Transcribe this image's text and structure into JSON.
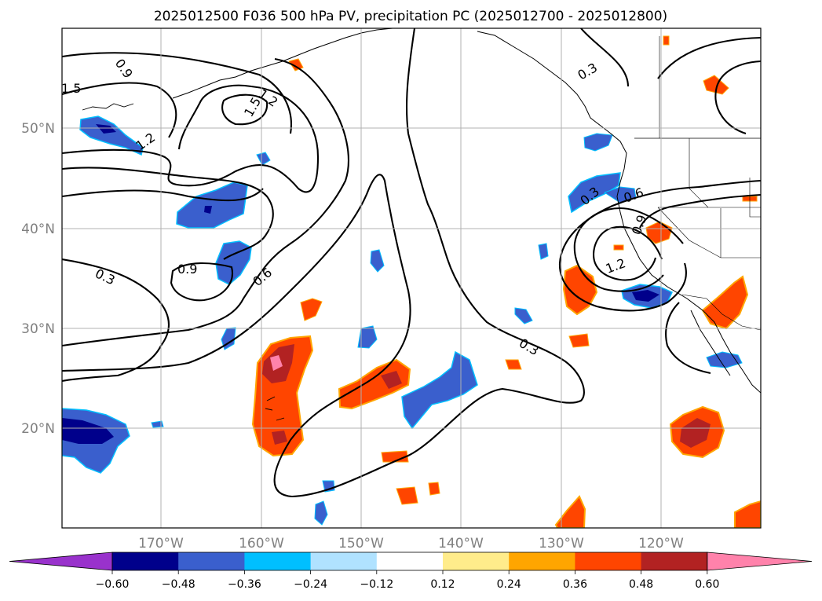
{
  "title": "2025012500 F036 500 hPa PV, precipitation PC (2025012700 - 2025012800)",
  "lon_ticks": [
    "170°W",
    "160°W",
    "150°W",
    "140°W",
    "130°W",
    "120°W"
  ],
  "lat_ticks": [
    "50°N",
    "40°N",
    "30°N",
    "20°N"
  ],
  "contour_labels": [
    "1.5",
    "0.9",
    "1.2",
    "1.5",
    "1.2",
    "0.9",
    "0.3",
    "0.6",
    "0.3",
    "0.3",
    "0.6",
    "0.9",
    "1.2",
    "0.3"
  ],
  "colorbar": {
    "colors": [
      "#9932cc",
      "#00008b",
      "#3a5fcd",
      "#00bfff",
      "#b0e2ff",
      "#ffffff",
      "#ffec8b",
      "#ffa500",
      "#ff4500",
      "#b22222",
      "#ff82ab"
    ],
    "tick_labels": [
      "−0.60",
      "−0.48",
      "−0.36",
      "−0.24",
      "−0.12",
      "0.12",
      "0.24",
      "0.36",
      "0.48",
      "0.60"
    ]
  },
  "colors": {
    "coast": "#000000",
    "grid": "#b0b0b0"
  }
}
